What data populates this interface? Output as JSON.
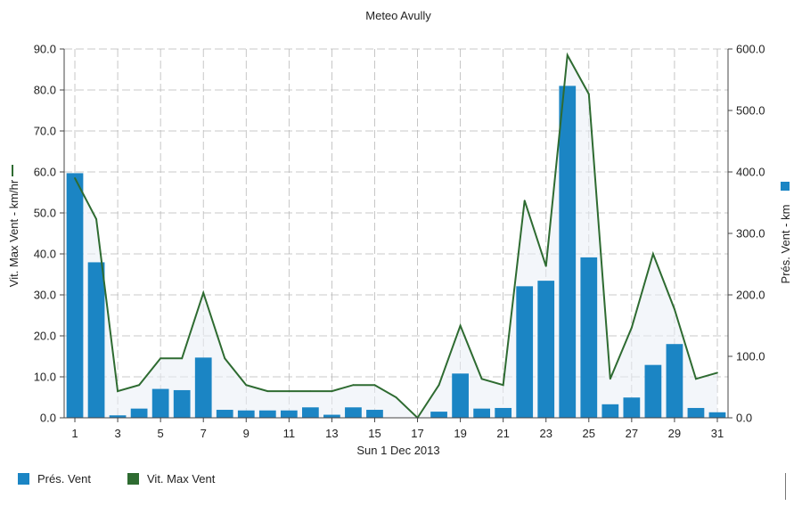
{
  "chart_data": {
    "type": "bar+line",
    "title": "Meteo  Avully",
    "xlabel": "Sun 1 Dec 2013",
    "ylabel_left": "Vit. Max Vent - km/hr",
    "ylabel_right": "Prés. Vent - km",
    "ylim_left": [
      0,
      90
    ],
    "ylim_right": [
      0,
      600
    ],
    "left_ticks": [
      "0.0",
      "10.0",
      "20.0",
      "30.0",
      "40.0",
      "50.0",
      "60.0",
      "70.0",
      "80.0",
      "90.0"
    ],
    "right_ticks": [
      "0.0",
      "100.0",
      "200.0",
      "300.0",
      "400.0",
      "500.0",
      "600.0"
    ],
    "x_ticks": [
      "1",
      "3",
      "5",
      "7",
      "9",
      "11",
      "13",
      "15",
      "17",
      "19",
      "21",
      "23",
      "25",
      "27",
      "29",
      "31"
    ],
    "x": [
      1,
      2,
      3,
      4,
      5,
      6,
      7,
      8,
      9,
      10,
      11,
      12,
      13,
      14,
      15,
      16,
      17,
      18,
      19,
      20,
      21,
      22,
      23,
      24,
      25,
      26,
      27,
      28,
      29,
      30,
      31
    ],
    "grid": true,
    "legend_position": "bottom",
    "series": [
      {
        "name": "Prés. Vent",
        "axis": "right",
        "type": "bar",
        "color": "#1b85c4",
        "values": [
          398,
          253,
          4,
          15,
          47,
          45,
          98,
          13,
          12,
          12,
          12,
          17,
          5,
          17,
          13,
          0,
          0,
          10,
          72,
          15,
          16,
          214,
          223,
          540,
          261,
          22,
          33,
          86,
          120,
          16,
          9
        ]
      },
      {
        "name": "Vit. Max Vent",
        "axis": "left",
        "type": "line",
        "color": "#2e6b31",
        "values": [
          58.5,
          48.5,
          6.5,
          8,
          14.5,
          14.5,
          30.5,
          14.5,
          8,
          6.5,
          6.5,
          6.5,
          6.5,
          8,
          8,
          5,
          0,
          8,
          22.5,
          9.5,
          8,
          53,
          37,
          88.5,
          79,
          9.5,
          22,
          40,
          26.5,
          9.5,
          11
        ]
      }
    ]
  },
  "legend": {
    "bar_label": "Prés. Vent",
    "line_label": "Vit. Max Vent"
  },
  "colors": {
    "bar": "#1b85c4",
    "line": "#2e6b31",
    "grid": "#b9b9b9"
  }
}
